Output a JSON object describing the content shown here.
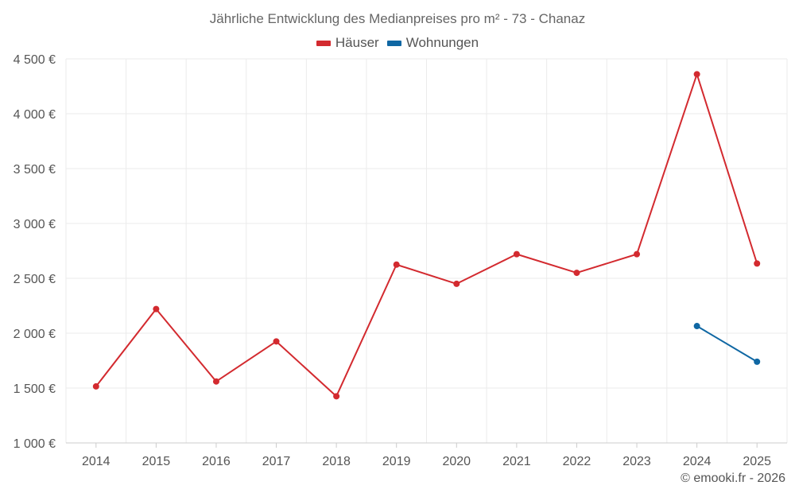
{
  "chart_data": {
    "type": "line",
    "title": "Jährliche Entwicklung des Medianpreises pro m² - 73 - Chanaz",
    "categories": [
      "2014",
      "2015",
      "2016",
      "2017",
      "2018",
      "2019",
      "2020",
      "2021",
      "2022",
      "2023",
      "2024",
      "2025"
    ],
    "series": [
      {
        "name": "Häuser",
        "color": "#d32a2f",
        "values": [
          1515,
          2220,
          1560,
          1925,
          1425,
          2625,
          2450,
          2720,
          2550,
          2720,
          4360,
          2635
        ]
      },
      {
        "name": "Wohnungen",
        "color": "#0f67a3",
        "values": [
          null,
          null,
          null,
          null,
          null,
          null,
          null,
          null,
          null,
          null,
          2065,
          1740
        ]
      }
    ],
    "ylim": [
      1000,
      4500
    ],
    "yticks": [
      1000,
      1500,
      2000,
      2500,
      3000,
      3500,
      4000,
      4500
    ],
    "ytick_labels": [
      "1 000 €",
      "1 500 €",
      "2 000 €",
      "2 500 €",
      "3 000 €",
      "3 500 €",
      "4 000 €",
      "4 500 €"
    ],
    "xlabel": "",
    "ylabel": "",
    "grid": true,
    "legend_position": "top-center"
  },
  "credit": "© emooki.fr - 2026"
}
